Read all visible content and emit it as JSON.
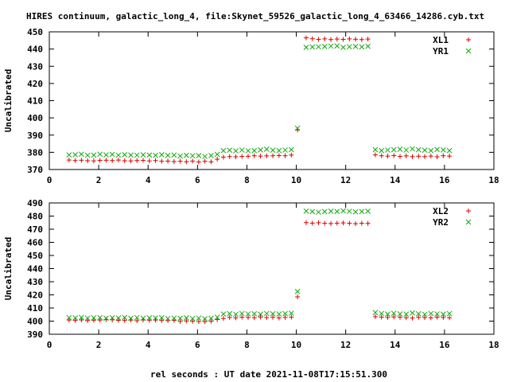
{
  "title": "HIRES continuum, galactic_long_4, file:Skynet_59526_galactic_long_4_63466_14286.cyb.txt",
  "xlabel": "rel seconds : UT date 2021-11-08T17:15:51.300",
  "colors": {
    "series1": "#dd0000",
    "series2": "#11aa11",
    "axis": "#000000"
  },
  "chart_data": [
    {
      "type": "scatter",
      "ylabel": "Uncalibrated",
      "xlim": [
        0,
        18
      ],
      "ylim": [
        370,
        450
      ],
      "xticks": [
        0,
        2,
        4,
        6,
        8,
        10,
        12,
        14,
        16,
        18
      ],
      "yticks": [
        370,
        380,
        390,
        400,
        410,
        420,
        430,
        440,
        450
      ],
      "legend_position": "top-right",
      "x": [
        0.8,
        1.05,
        1.3,
        1.55,
        1.8,
        2.05,
        2.3,
        2.55,
        2.8,
        3.05,
        3.3,
        3.55,
        3.8,
        4.05,
        4.3,
        4.55,
        4.8,
        5.05,
        5.3,
        5.55,
        5.8,
        6.05,
        6.3,
        6.55,
        6.8,
        7.05,
        7.3,
        7.55,
        7.8,
        8.05,
        8.3,
        8.55,
        8.8,
        9.05,
        9.3,
        9.55,
        9.8,
        10.05,
        10.4,
        10.65,
        10.9,
        11.15,
        11.4,
        11.65,
        11.9,
        12.15,
        12.4,
        12.65,
        12.9,
        13.2,
        13.45,
        13.7,
        13.95,
        14.2,
        14.45,
        14.7,
        14.95,
        15.2,
        15.45,
        15.7,
        15.95,
        16.2
      ],
      "series": [
        {
          "name": "XL1",
          "marker": "plus",
          "values": [
            375.5,
            375.2,
            375.4,
            375.1,
            375.0,
            375.3,
            375.4,
            375.2,
            375.5,
            375.1,
            375.0,
            375.2,
            375.3,
            375.0,
            375.2,
            374.8,
            374.9,
            374.6,
            374.8,
            374.5,
            374.9,
            374.4,
            374.8,
            374.5,
            376.0,
            377.2,
            377.5,
            377.4,
            377.6,
            377.7,
            378.0,
            377.8,
            377.9,
            378.0,
            378.1,
            378.0,
            378.4,
            393.0,
            446.5,
            446.0,
            445.6,
            445.9,
            445.5,
            445.8,
            445.6,
            445.9,
            445.7,
            445.5,
            445.8,
            378.5,
            378.0,
            377.8,
            378.1,
            377.6,
            377.9,
            377.5,
            377.7,
            377.5,
            377.8,
            377.4,
            378.0,
            377.8
          ]
        },
        {
          "name": "YR1",
          "marker": "cross",
          "values": [
            378.5,
            378.6,
            378.9,
            378.3,
            378.4,
            378.9,
            378.5,
            378.8,
            378.3,
            378.6,
            378.4,
            378.3,
            378.5,
            378.4,
            378.2,
            378.6,
            378.2,
            378.4,
            377.8,
            378.2,
            378.0,
            378.1,
            377.6,
            378.1,
            378.8,
            381.0,
            381.2,
            380.8,
            381.3,
            380.9,
            381.0,
            381.4,
            381.8,
            381.2,
            381.0,
            381.3,
            381.5,
            394.0,
            441.0,
            441.2,
            441.3,
            441.5,
            441.7,
            441.8,
            441.0,
            441.3,
            441.5,
            441.2,
            441.6,
            381.5,
            381.0,
            381.3,
            381.5,
            381.8,
            381.3,
            382.0,
            381.5,
            381.2,
            381.0,
            381.6,
            381.4,
            381.0
          ]
        }
      ]
    },
    {
      "type": "scatter",
      "ylabel": "Uncalibrated",
      "xlim": [
        0,
        18
      ],
      "ylim": [
        390,
        490
      ],
      "xticks": [
        0,
        2,
        4,
        6,
        8,
        10,
        12,
        14,
        16,
        18
      ],
      "yticks": [
        390,
        400,
        410,
        420,
        430,
        440,
        450,
        460,
        470,
        480,
        490
      ],
      "legend_position": "top-right",
      "x": [
        0.8,
        1.05,
        1.3,
        1.55,
        1.8,
        2.05,
        2.3,
        2.55,
        2.8,
        3.05,
        3.3,
        3.55,
        3.8,
        4.05,
        4.3,
        4.55,
        4.8,
        5.05,
        5.3,
        5.55,
        5.8,
        6.05,
        6.3,
        6.55,
        6.8,
        7.05,
        7.3,
        7.55,
        7.8,
        8.05,
        8.3,
        8.55,
        8.8,
        9.05,
        9.3,
        9.55,
        9.8,
        10.05,
        10.4,
        10.65,
        10.9,
        11.15,
        11.4,
        11.65,
        11.9,
        12.15,
        12.4,
        12.65,
        12.9,
        13.2,
        13.45,
        13.7,
        13.95,
        14.2,
        14.45,
        14.7,
        14.95,
        15.2,
        15.45,
        15.7,
        15.95,
        16.2
      ],
      "series": [
        {
          "name": "XL2",
          "marker": "plus",
          "values": [
            400.8,
            400.5,
            400.9,
            400.4,
            400.7,
            400.8,
            401.2,
            401.0,
            400.6,
            400.5,
            400.8,
            400.3,
            400.9,
            400.7,
            400.8,
            400.5,
            400.4,
            400.6,
            399.8,
            400.1,
            399.9,
            399.7,
            399.6,
            399.9,
            401.2,
            402.0,
            402.8,
            402.5,
            403.0,
            402.8,
            402.6,
            403.1,
            402.7,
            402.9,
            402.4,
            402.8,
            403.0,
            418.5,
            475.0,
            474.6,
            474.9,
            474.5,
            474.3,
            474.6,
            474.8,
            474.5,
            474.2,
            474.5,
            474.4,
            403.4,
            403.0,
            402.8,
            403.2,
            402.9,
            402.6,
            402.3,
            402.9,
            402.7,
            402.5,
            403.0,
            402.8,
            402.6
          ]
        },
        {
          "name": "YR2",
          "marker": "cross",
          "values": [
            402.6,
            402.4,
            402.8,
            402.3,
            402.5,
            402.7,
            402.2,
            402.6,
            402.4,
            402.8,
            402.1,
            402.7,
            402.2,
            402.5,
            402.4,
            402.6,
            402.0,
            402.3,
            402.2,
            402.5,
            402.0,
            402.3,
            401.8,
            402.2,
            403.0,
            405.4,
            405.7,
            405.2,
            405.8,
            405.5,
            405.6,
            405.3,
            405.8,
            405.6,
            405.4,
            405.7,
            406.0,
            422.5,
            483.8,
            483.4,
            483.0,
            483.4,
            483.7,
            483.5,
            484.0,
            483.6,
            483.2,
            483.5,
            483.7,
            406.5,
            405.8,
            405.4,
            405.9,
            405.5,
            405.3,
            406.2,
            405.6,
            405.2,
            405.8,
            405.5,
            405.3,
            405.7
          ]
        }
      ]
    }
  ]
}
